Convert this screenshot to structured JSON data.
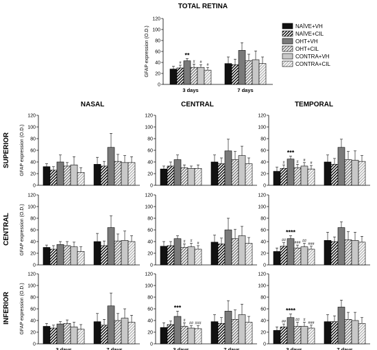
{
  "figure": {
    "main_title": "TOTAL RETINA",
    "column_titles": [
      "NASAL",
      "CENTRAL",
      "TEMPORAL"
    ],
    "row_titles": [
      "SUPERIOR",
      "CENTRAL",
      "INFERIOR"
    ]
  },
  "legend": {
    "placement": "right of top panel",
    "entries": [
      {
        "label": "NAÏVE+VH",
        "pattern": "solid-black"
      },
      {
        "label": "NAÏVE+CIL",
        "pattern": "hatch-black"
      },
      {
        "label": "OHT+VH",
        "pattern": "solid-darkgray"
      },
      {
        "label": "OHT+CIL",
        "pattern": "hatch-gray"
      },
      {
        "label": "CONTRA+VH",
        "pattern": "solid-lightgray"
      },
      {
        "label": "CONTRA+CIL",
        "pattern": "hatch-lightgray"
      }
    ]
  },
  "colors": {
    "naive_vh": "#111111",
    "ohtvh": "#7a7a7a",
    "contravh": "#c8c8c8",
    "hatch_dark": "#111111",
    "hatch_mid": "#777777",
    "hatch_light": "#bbbbbb"
  },
  "chart_data": [
    {
      "id": "total",
      "type": "bar",
      "title": "TOTAL RETINA",
      "ylabel": "GFAP expression (O.D.)",
      "categories": [
        "3 days",
        "7 days"
      ],
      "ylim": [
        0,
        120
      ],
      "yticks": [
        0,
        20,
        40,
        60,
        80,
        100,
        120
      ],
      "series": [
        {
          "name": "NAÏVE+VH",
          "values": [
            28,
            38
          ],
          "errors": [
            5,
            12
          ]
        },
        {
          "name": "NAÏVE+CIL",
          "values": [
            30,
            36
          ],
          "errors": [
            5,
            10
          ]
        },
        {
          "name": "OHT+VH",
          "values": [
            43,
            62
          ],
          "errors": [
            4,
            14
          ]
        },
        {
          "name": "OHT+CIL",
          "values": [
            31,
            43
          ],
          "errors": [
            6,
            12
          ]
        },
        {
          "name": "CONTRA+VH",
          "values": [
            31,
            45
          ],
          "errors": [
            5,
            16
          ]
        },
        {
          "name": "CONTRA+CIL",
          "values": [
            26,
            38
          ],
          "errors": [
            5,
            12
          ]
        }
      ],
      "annotations": [
        {
          "category": "3 days",
          "series": "OHT+VH",
          "text": "**"
        },
        {
          "category": "3 days",
          "series": "NAÏVE+CIL",
          "text": "#"
        },
        {
          "category": "3 days",
          "series": "OHT+CIL",
          "text": "#"
        },
        {
          "category": "3 days",
          "series": "CONTRA+VH",
          "text": "#"
        },
        {
          "category": "3 days",
          "series": "CONTRA+CIL",
          "text": "#"
        }
      ]
    },
    {
      "id": "sup-nasal",
      "type": "bar",
      "row": "SUPERIOR",
      "column": "NASAL",
      "ylabel": "GFAP expression (O.D.)",
      "categories": [
        "3 days",
        "7 days"
      ],
      "ylim": [
        0,
        120
      ],
      "yticks": [
        0,
        20,
        40,
        60,
        80,
        100,
        120
      ],
      "values": [
        [
          32,
          26,
          40,
          33,
          35,
          22
        ],
        [
          36,
          33,
          65,
          41,
          39,
          39
        ]
      ],
      "errors": [
        [
          5,
          6,
          12,
          6,
          14,
          8
        ],
        [
          12,
          8,
          24,
          12,
          12,
          10
        ]
      ],
      "annotations": []
    },
    {
      "id": "sup-central",
      "type": "bar",
      "row": "SUPERIOR",
      "column": "CENTRAL",
      "ylabel": "GFAP expression (O.D.)",
      "categories": [
        "3 days",
        "7 days"
      ],
      "ylim": [
        0,
        120
      ],
      "yticks": [
        0,
        20,
        40,
        60,
        80,
        100,
        120
      ],
      "values": [
        [
          28,
          33,
          44,
          30,
          29,
          29
        ],
        [
          40,
          37,
          59,
          44,
          51,
          37
        ]
      ],
      "errors": [
        [
          5,
          7,
          8,
          5,
          4,
          6
        ],
        [
          12,
          10,
          20,
          14,
          16,
          10
        ]
      ],
      "annotations": []
    },
    {
      "id": "sup-temporal",
      "type": "bar",
      "row": "SUPERIOR",
      "column": "TEMPORAL",
      "ylabel": "GFAP expression (O.D.)",
      "categories": [
        "3 days",
        "7 days"
      ],
      "ylim": [
        0,
        120
      ],
      "yticks": [
        0,
        20,
        40,
        60,
        80,
        100,
        120
      ],
      "values": [
        [
          24,
          29,
          45,
          30,
          33,
          28
        ],
        [
          40,
          36,
          65,
          44,
          43,
          41
        ]
      ],
      "errors": [
        [
          7,
          6,
          5,
          6,
          6,
          6
        ],
        [
          12,
          10,
          14,
          14,
          16,
          10
        ]
      ],
      "annotations": [
        {
          "category": 0,
          "series": 2,
          "text": "***"
        },
        {
          "category": 0,
          "series": 1,
          "text": "#"
        },
        {
          "category": 0,
          "series": 3,
          "text": "#"
        },
        {
          "category": 0,
          "series": 4,
          "text": "#"
        },
        {
          "category": 0,
          "series": 5,
          "text": "#"
        }
      ]
    },
    {
      "id": "cen-nasal",
      "type": "bar",
      "row": "CENTRAL",
      "column": "NASAL",
      "ylabel": "GFAP expression (O.D.)",
      "categories": [
        "3 days",
        "7 days"
      ],
      "ylim": [
        0,
        120
      ],
      "yticks": [
        0,
        20,
        40,
        60,
        80,
        100,
        120
      ],
      "values": [
        [
          30,
          27,
          35,
          33,
          31,
          23
        ],
        [
          40,
          33,
          64,
          41,
          42,
          40
        ]
      ],
      "errors": [
        [
          4,
          6,
          5,
          7,
          8,
          8
        ],
        [
          14,
          8,
          20,
          12,
          16,
          10
        ]
      ],
      "annotations": []
    },
    {
      "id": "cen-central",
      "type": "bar",
      "row": "CENTRAL",
      "column": "CENTRAL",
      "ylabel": "GFAP expression (O.D.)",
      "categories": [
        "3 days",
        "7 days"
      ],
      "ylim": [
        0,
        120
      ],
      "yticks": [
        0,
        20,
        40,
        60,
        80,
        100,
        120
      ],
      "values": [
        [
          32,
          33,
          45,
          30,
          31,
          27
        ],
        [
          39,
          36,
          60,
          45,
          50,
          37
        ]
      ],
      "errors": [
        [
          8,
          7,
          5,
          6,
          6,
          6
        ],
        [
          12,
          10,
          20,
          16,
          16,
          10
        ]
      ],
      "annotations": [
        {
          "category": 0,
          "series": 3,
          "text": "#"
        },
        {
          "category": 0,
          "series": 4,
          "text": "#"
        },
        {
          "category": 0,
          "series": 5,
          "text": "#"
        }
      ]
    },
    {
      "id": "cen-temporal",
      "type": "bar",
      "row": "CENTRAL",
      "column": "TEMPORAL",
      "ylabel": "GFAP expression (O.D.)",
      "categories": [
        "3 days",
        "7 days"
      ],
      "ylim": [
        0,
        120
      ],
      "yticks": [
        0,
        20,
        40,
        60,
        80,
        100,
        120
      ],
      "values": [
        [
          23,
          32,
          45,
          29,
          31,
          27
        ],
        [
          42,
          40,
          64,
          43,
          42,
          39
        ]
      ],
      "errors": [
        [
          6,
          6,
          5,
          5,
          6,
          5
        ],
        [
          14,
          8,
          10,
          14,
          14,
          10
        ]
      ],
      "annotations": [
        {
          "category": 0,
          "series": 2,
          "text": "****"
        },
        {
          "category": 0,
          "series": 1,
          "text": "##"
        },
        {
          "category": 0,
          "series": 3,
          "text": "###"
        },
        {
          "category": 0,
          "series": 4,
          "text": "##"
        },
        {
          "category": 0,
          "series": 5,
          "text": "###"
        }
      ]
    },
    {
      "id": "inf-nasal",
      "type": "bar",
      "row": "INFERIOR",
      "column": "NASAL",
      "ylabel": "GFAP expression (O.D.)",
      "categories": [
        "3 days",
        "7 days"
      ],
      "ylim": [
        0,
        120
      ],
      "yticks": [
        0,
        20,
        40,
        60,
        80,
        100,
        120
      ],
      "values": [
        [
          30,
          27,
          34,
          35,
          29,
          25
        ],
        [
          38,
          32,
          65,
          40,
          44,
          37
        ]
      ],
      "errors": [
        [
          5,
          5,
          4,
          6,
          8,
          8
        ],
        [
          14,
          10,
          22,
          12,
          16,
          12
        ]
      ],
      "annotations": []
    },
    {
      "id": "inf-central",
      "type": "bar",
      "row": "INFERIOR",
      "column": "CENTRAL",
      "ylabel": "GFAP expression (O.D.)",
      "categories": [
        "3 days",
        "7 days"
      ],
      "ylim": [
        0,
        120
      ],
      "yticks": [
        0,
        20,
        40,
        60,
        80,
        100,
        120
      ],
      "values": [
        [
          28,
          33,
          47,
          30,
          27,
          26
        ],
        [
          38,
          35,
          56,
          42,
          50,
          37
        ]
      ],
      "errors": [
        [
          8,
          6,
          9,
          6,
          4,
          5
        ],
        [
          12,
          10,
          18,
          16,
          18,
          10
        ]
      ],
      "annotations": [
        {
          "category": 0,
          "series": 2,
          "text": "***"
        },
        {
          "category": 0,
          "series": 3,
          "text": "#"
        },
        {
          "category": 0,
          "series": 4,
          "text": "##"
        },
        {
          "category": 0,
          "series": 5,
          "text": "###"
        }
      ]
    },
    {
      "id": "inf-temporal",
      "type": "bar",
      "row": "INFERIOR",
      "column": "TEMPORAL",
      "ylabel": "GFAP expression (O.D.)",
      "categories": [
        "3 days",
        "7 days"
      ],
      "ylim": [
        0,
        120
      ],
      "yticks": [
        0,
        20,
        40,
        60,
        80,
        100,
        120
      ],
      "values": [
        [
          23,
          29,
          45,
          30,
          30,
          27
        ],
        [
          38,
          38,
          63,
          42,
          40,
          35
        ]
      ],
      "errors": [
        [
          6,
          5,
          6,
          7,
          7,
          5
        ],
        [
          12,
          10,
          12,
          12,
          14,
          10
        ]
      ],
      "annotations": [
        {
          "category": 0,
          "series": 2,
          "text": "****"
        },
        {
          "category": 0,
          "series": 1,
          "text": "##"
        },
        {
          "category": 0,
          "series": 3,
          "text": "##"
        },
        {
          "category": 0,
          "series": 4,
          "text": "#"
        },
        {
          "category": 0,
          "series": 5,
          "text": "###"
        }
      ]
    }
  ]
}
